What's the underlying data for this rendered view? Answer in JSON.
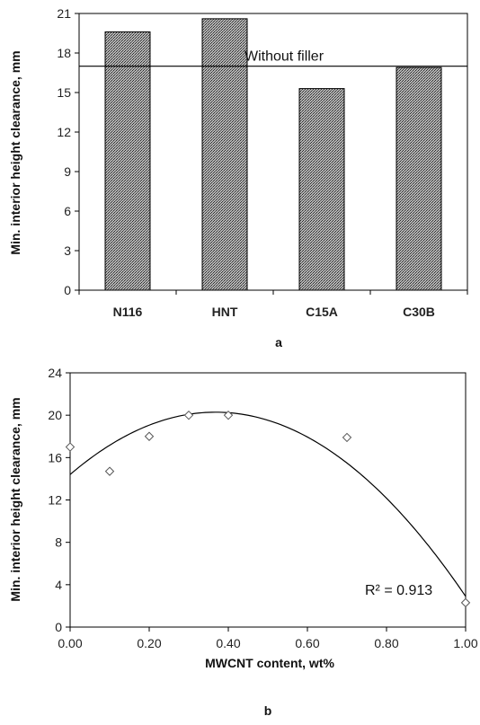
{
  "chart_data": [
    {
      "type": "bar",
      "panel_label": "a",
      "categories": [
        "N116",
        "HNT",
        "C15A",
        "C30B"
      ],
      "values": [
        19.6,
        20.6,
        15.3,
        16.9
      ],
      "ylabel": "Min. interior height clearance, mm",
      "xlabel": "",
      "ylim": [
        0,
        21
      ],
      "yticks": [
        0,
        3,
        6,
        9,
        12,
        15,
        18,
        21
      ],
      "reference_line": {
        "label": "Without filler",
        "value": 17
      },
      "bar_pattern": "crosshatch-gray"
    },
    {
      "type": "scatter",
      "panel_label": "b",
      "x": [
        0.0,
        0.1,
        0.2,
        0.3,
        0.4,
        0.7,
        1.0
      ],
      "y": [
        17.0,
        14.7,
        18.0,
        20.0,
        20.0,
        17.9,
        2.3
      ],
      "xlabel": "MWCNT content, wt%",
      "ylabel": "Min. interior height clearance, mm",
      "xlim": [
        0,
        1
      ],
      "ylim": [
        0,
        24
      ],
      "xticks": [
        "0.00",
        "0.20",
        "0.40",
        "0.60",
        "0.80",
        "1.00"
      ],
      "yticks": [
        0,
        4,
        8,
        12,
        16,
        20,
        24
      ],
      "trendline": {
        "type": "polynomial",
        "coefficients": [
          14.4,
          32.0,
          -43.5
        ],
        "label": "R² = 0.913"
      },
      "marker": "diamond-open"
    }
  ]
}
